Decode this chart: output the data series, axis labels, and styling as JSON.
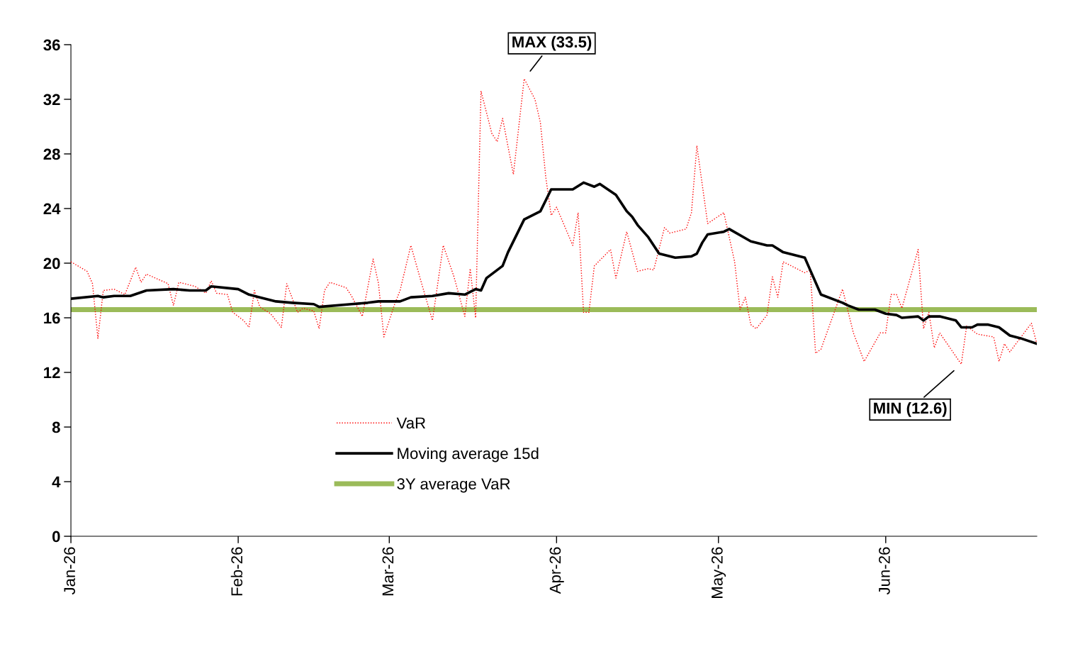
{
  "chart_data": {
    "type": "line",
    "xlim": [
      "2026-01-01",
      "2026-06-29"
    ],
    "xticks": [
      {
        "value": "2026-01-01",
        "label": "Jan-26"
      },
      {
        "value": "2026-02-01",
        "label": "Feb-26"
      },
      {
        "value": "2026-03-01",
        "label": "Mar-26"
      },
      {
        "value": "2026-04-01",
        "label": "Apr-26"
      },
      {
        "value": "2026-05-01",
        "label": "May-26"
      },
      {
        "value": "2026-06-01",
        "label": "Jun-26"
      }
    ],
    "ylim": [
      0,
      36
    ],
    "yticks": [
      0,
      4,
      8,
      12,
      16,
      20,
      24,
      28,
      32,
      36
    ],
    "grid": false,
    "legend": "bottom",
    "marker": "none",
    "series": [
      {
        "name": "VaR",
        "color": "#ff0000",
        "line_style": "dotted",
        "x": [
          "2026-01-01",
          "2026-01-04",
          "2026-01-05",
          "2026-01-06",
          "2026-01-07",
          "2026-01-09",
          "2026-01-11",
          "2026-01-13",
          "2026-01-14",
          "2026-01-15",
          "2026-01-19",
          "2026-01-20",
          "2026-01-21",
          "2026-01-24",
          "2026-01-26",
          "2026-01-27",
          "2026-01-28",
          "2026-01-30",
          "2026-01-31",
          "2026-02-02",
          "2026-02-03",
          "2026-02-04",
          "2026-02-05",
          "2026-02-07",
          "2026-02-09",
          "2026-02-10",
          "2026-02-12",
          "2026-02-13",
          "2026-02-15",
          "2026-02-16",
          "2026-02-17",
          "2026-02-18",
          "2026-02-21",
          "2026-02-22",
          "2026-02-24",
          "2026-02-26",
          "2026-02-27",
          "2026-02-28",
          "2026-03-02",
          "2026-03-03",
          "2026-03-05",
          "2026-03-07",
          "2026-03-09",
          "2026-03-11",
          "2026-03-13",
          "2026-03-15",
          "2026-03-16",
          "2026-03-17",
          "2026-03-18",
          "2026-03-20",
          "2026-03-21",
          "2026-03-22",
          "2026-03-24",
          "2026-03-26",
          "2026-03-28",
          "2026-03-29",
          "2026-03-30",
          "2026-03-31",
          "2026-04-01",
          "2026-04-04",
          "2026-04-05",
          "2026-04-06",
          "2026-04-07",
          "2026-04-08",
          "2026-04-11",
          "2026-04-12",
          "2026-04-14",
          "2026-04-16",
          "2026-04-18",
          "2026-04-19",
          "2026-04-21",
          "2026-04-22",
          "2026-04-25",
          "2026-04-26",
          "2026-04-27",
          "2026-04-29",
          "2026-05-02",
          "2026-05-04",
          "2026-05-05",
          "2026-05-06",
          "2026-05-07",
          "2026-05-08",
          "2026-05-10",
          "2026-05-11",
          "2026-05-12",
          "2026-05-13",
          "2026-05-17",
          "2026-05-18",
          "2026-05-19",
          "2026-05-20",
          "2026-05-24",
          "2026-05-26",
          "2026-05-28",
          "2026-05-31",
          "2026-06-01",
          "2026-06-02",
          "2026-06-03",
          "2026-06-04",
          "2026-06-07",
          "2026-06-08",
          "2026-06-09",
          "2026-06-10",
          "2026-06-11",
          "2026-06-15",
          "2026-06-16",
          "2026-06-18",
          "2026-06-21",
          "2026-06-22",
          "2026-06-23",
          "2026-06-24",
          "2026-06-28",
          "2026-06-29"
        ],
        "values": [
          20.1,
          19.4,
          18.5,
          14.5,
          18.0,
          18.1,
          17.7,
          19.7,
          18.6,
          19.2,
          18.5,
          16.9,
          18.6,
          18.3,
          17.8,
          18.7,
          17.8,
          17.7,
          16.4,
          15.8,
          15.3,
          18.0,
          16.8,
          16.3,
          15.3,
          18.5,
          16.4,
          16.7,
          16.5,
          15.2,
          18.0,
          18.6,
          18.2,
          17.6,
          16.1,
          20.3,
          18.5,
          14.6,
          17.0,
          18.0,
          21.3,
          18.5,
          15.8,
          21.3,
          19.0,
          16.1,
          19.6,
          16.0,
          32.6,
          29.5,
          28.9,
          30.6,
          26.5,
          33.5,
          32.0,
          30.3,
          26.3,
          23.5,
          24.1,
          21.3,
          23.7,
          16.4,
          16.4,
          19.8,
          21.0,
          18.9,
          22.3,
          19.4,
          19.6,
          19.5,
          22.6,
          22.2,
          22.5,
          23.7,
          28.6,
          22.9,
          23.7,
          20.1,
          16.6,
          17.5,
          15.5,
          15.2,
          16.2,
          19.0,
          17.5,
          20.1,
          19.3,
          19.5,
          13.4,
          13.7,
          18.1,
          14.9,
          12.8,
          14.9,
          14.9,
          17.7,
          17.7,
          16.7,
          21.0,
          15.2,
          16.4,
          13.8,
          14.9,
          12.6,
          15.4,
          14.8,
          14.6,
          12.8,
          14.1,
          13.5,
          15.6,
          14.1
        ]
      },
      {
        "name": "Moving average 15d",
        "color": "#000000",
        "line_style": "solid",
        "x": [
          "2026-01-01",
          "2026-01-06",
          "2026-01-07",
          "2026-01-09",
          "2026-01-12",
          "2026-01-15",
          "2026-01-20",
          "2026-01-23",
          "2026-01-26",
          "2026-01-27",
          "2026-02-01",
          "2026-02-03",
          "2026-02-05",
          "2026-02-08",
          "2026-02-11",
          "2026-02-15",
          "2026-02-16",
          "2026-02-22",
          "2026-02-25",
          "2026-02-27",
          "2026-03-01",
          "2026-03-03",
          "2026-03-05",
          "2026-03-09",
          "2026-03-12",
          "2026-03-15",
          "2026-03-17",
          "2026-03-18",
          "2026-03-19",
          "2026-03-22",
          "2026-03-23",
          "2026-03-26",
          "2026-03-29",
          "2026-03-30",
          "2026-03-31",
          "2026-04-04",
          "2026-04-06",
          "2026-04-08",
          "2026-04-09",
          "2026-04-12",
          "2026-04-14",
          "2026-04-15",
          "2026-04-16",
          "2026-04-18",
          "2026-04-20",
          "2026-04-23",
          "2026-04-26",
          "2026-04-27",
          "2026-04-28",
          "2026-04-29",
          "2026-05-02",
          "2026-05-03",
          "2026-05-07",
          "2026-05-10",
          "2026-05-11",
          "2026-05-13",
          "2026-05-17",
          "2026-05-18",
          "2026-05-20",
          "2026-05-24",
          "2026-05-25",
          "2026-05-27",
          "2026-05-30",
          "2026-06-01",
          "2026-06-03",
          "2026-06-04",
          "2026-06-07",
          "2026-06-08",
          "2026-06-09",
          "2026-06-11",
          "2026-06-14",
          "2026-06-15",
          "2026-06-17",
          "2026-06-18",
          "2026-06-20",
          "2026-06-22",
          "2026-06-24",
          "2026-06-26",
          "2026-06-29"
        ],
        "values": [
          17.4,
          17.6,
          17.5,
          17.6,
          17.6,
          18.0,
          18.1,
          18.0,
          18.0,
          18.3,
          18.1,
          17.7,
          17.5,
          17.2,
          17.1,
          17.0,
          16.8,
          17.0,
          17.1,
          17.2,
          17.2,
          17.2,
          17.5,
          17.6,
          17.8,
          17.7,
          18.1,
          18.0,
          18.9,
          19.8,
          20.8,
          23.2,
          23.8,
          24.6,
          25.4,
          25.4,
          25.9,
          25.6,
          25.8,
          25.0,
          23.8,
          23.4,
          22.8,
          21.9,
          20.7,
          20.4,
          20.5,
          20.7,
          21.5,
          22.1,
          22.3,
          22.5,
          21.6,
          21.3,
          21.3,
          20.8,
          20.4,
          19.5,
          17.7,
          17.1,
          16.9,
          16.6,
          16.6,
          16.3,
          16.2,
          16.0,
          16.1,
          15.8,
          16.1,
          16.1,
          15.8,
          15.3,
          15.3,
          15.5,
          15.5,
          15.3,
          14.7,
          14.5,
          14.1
        ]
      },
      {
        "name": "3Y average VaR",
        "color": "#9bbb59",
        "line_style": "solid",
        "x": [
          "2026-01-01",
          "2026-06-29"
        ],
        "values": [
          16.6,
          16.6
        ]
      }
    ],
    "annotations": [
      {
        "text": "MAX (33.5)",
        "x": "2026-03-26",
        "y": 33.5
      },
      {
        "text": "MIN (12.6)",
        "x": "2026-06-15",
        "y": 12.6
      }
    ]
  }
}
